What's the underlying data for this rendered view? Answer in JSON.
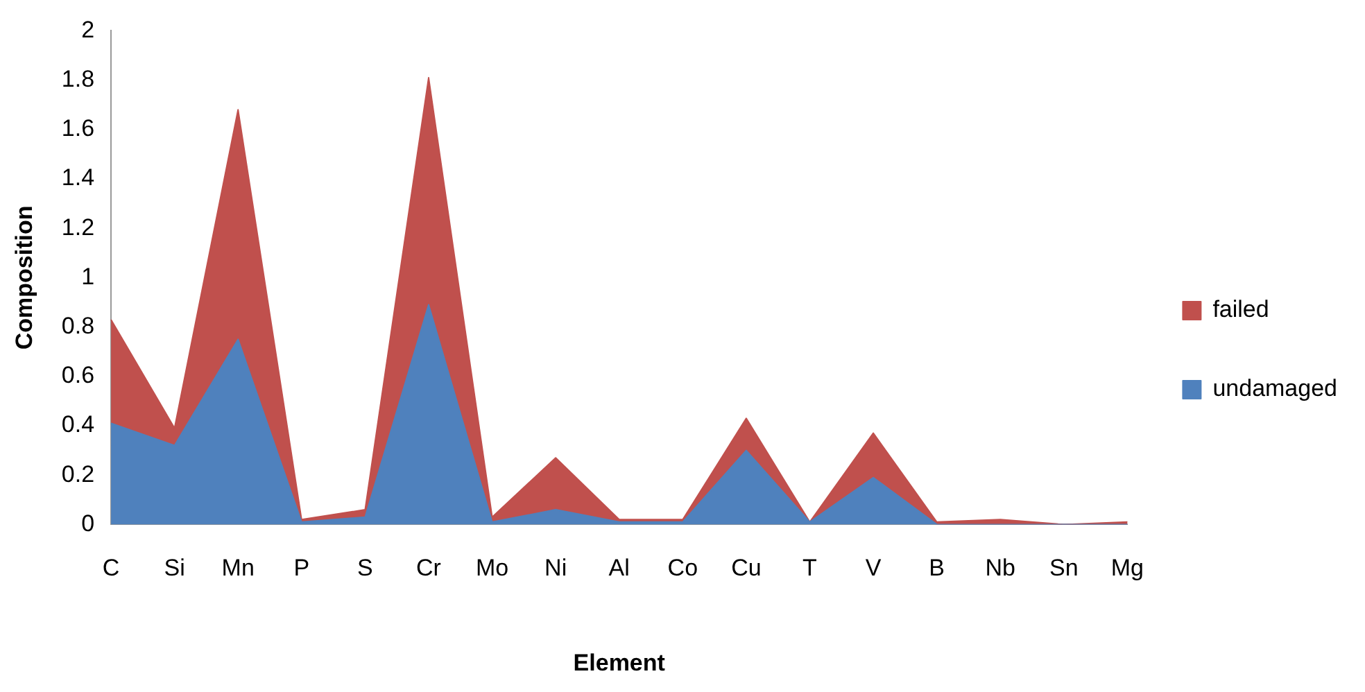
{
  "chart_data": {
    "type": "area",
    "xlabel": "Element",
    "ylabel": "Composition",
    "categories": [
      "C",
      "Si",
      "Mn",
      "P",
      "S",
      "Cr",
      "Mo",
      "Ni",
      "Al",
      "Co",
      "Cu",
      "T",
      "V",
      "B",
      "Nb",
      "Sn",
      "Mg"
    ],
    "stacked": true,
    "series": [
      {
        "name": "undamaged",
        "color": "#4f81bd",
        "values": [
          0.41,
          0.32,
          0.75,
          0.01,
          0.03,
          0.89,
          0.01,
          0.06,
          0.01,
          0.01,
          0.3,
          0.01,
          0.19,
          0,
          0,
          0,
          0
        ]
      },
      {
        "name": "failed",
        "color": "#c0504d",
        "values": [
          0.42,
          0.07,
          0.93,
          0.01,
          0.03,
          0.92,
          0.02,
          0.21,
          0.01,
          0.01,
          0.13,
          0,
          0.18,
          0.01,
          0.02,
          0,
          0.01
        ]
      }
    ],
    "ylim": [
      0,
      2
    ],
    "yticks": [
      0,
      0.2,
      0.4,
      0.6,
      0.8,
      1,
      1.2,
      1.4,
      1.6,
      1.8,
      2
    ],
    "grid": false,
    "legend": "right"
  }
}
